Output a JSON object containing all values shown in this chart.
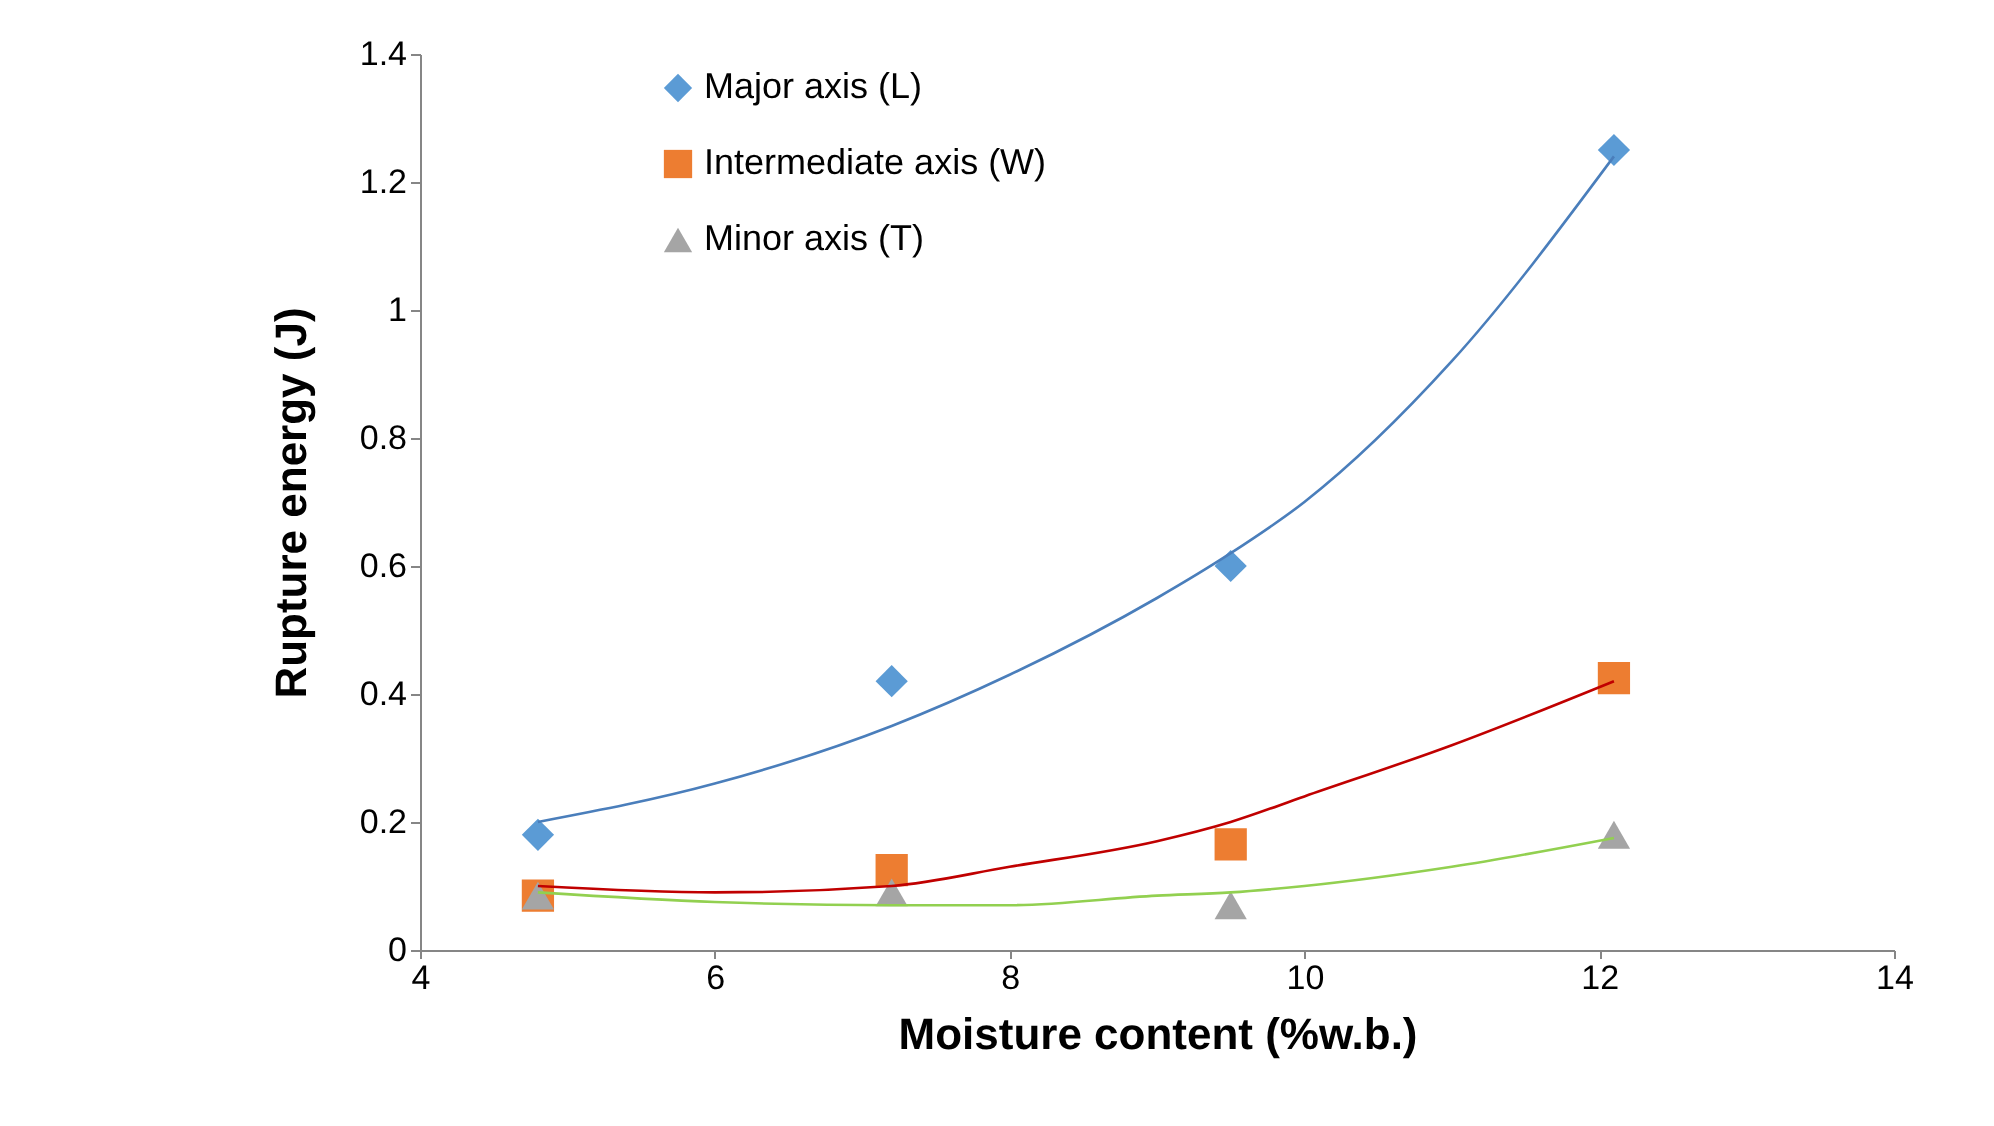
{
  "chart_data": {
    "type": "scatter",
    "xlabel": "Moisture content (%w.b.)",
    "ylabel": "Rupture energy (J)",
    "xlim": [
      4,
      14
    ],
    "xticks": [
      4,
      6,
      8,
      10,
      12,
      14
    ],
    "ylim": [
      0,
      1.4
    ],
    "yticks": [
      0,
      0.2,
      0.4,
      0.6,
      0.8,
      1,
      1.2,
      1.4
    ],
    "grid": false,
    "legend": "top left",
    "series": [
      {
        "name": "Major axis (L)",
        "color": "#5b9bd5",
        "marker": "diamond",
        "x": [
          4.8,
          7.2,
          9.5,
          12.1
        ],
        "values": [
          0.18,
          0.42,
          0.6,
          1.25
        ]
      },
      {
        "name": "Intermediate axis (W)",
        "color": "#ed7d31",
        "marker": "square",
        "x": [
          4.8,
          7.2,
          9.5,
          12.1
        ],
        "values": [
          0.085,
          0.125,
          0.165,
          0.425
        ]
      },
      {
        "name": "Minor axis (T)",
        "color": "#a5a5a5",
        "marker": "triangle",
        "x": [
          4.8,
          7.2,
          9.5,
          12.1
        ],
        "values": [
          0.085,
          0.09,
          0.07,
          0.18
        ]
      },
      {
        "type": "line",
        "color": "#4a7ebb",
        "x": [
          4.8,
          6,
          7.2,
          8,
          9,
          9.5,
          10,
          11,
          12.1
        ],
        "values": [
          0.2,
          0.26,
          0.35,
          0.43,
          0.55,
          0.62,
          0.7,
          0.92,
          1.24
        ]
      },
      {
        "type": "line",
        "color": "#c00000",
        "x": [
          4.8,
          6,
          7.2,
          8,
          9,
          9.5,
          10,
          11,
          12.1
        ],
        "values": [
          0.1,
          0.09,
          0.1,
          0.13,
          0.17,
          0.2,
          0.24,
          0.32,
          0.42
        ]
      },
      {
        "type": "line",
        "color": "#92d050",
        "x": [
          4.8,
          6,
          7.2,
          8,
          9,
          9.5,
          10,
          11,
          12.1
        ],
        "values": [
          0.09,
          0.075,
          0.07,
          0.07,
          0.085,
          0.09,
          0.1,
          0.13,
          0.175
        ]
      }
    ]
  }
}
